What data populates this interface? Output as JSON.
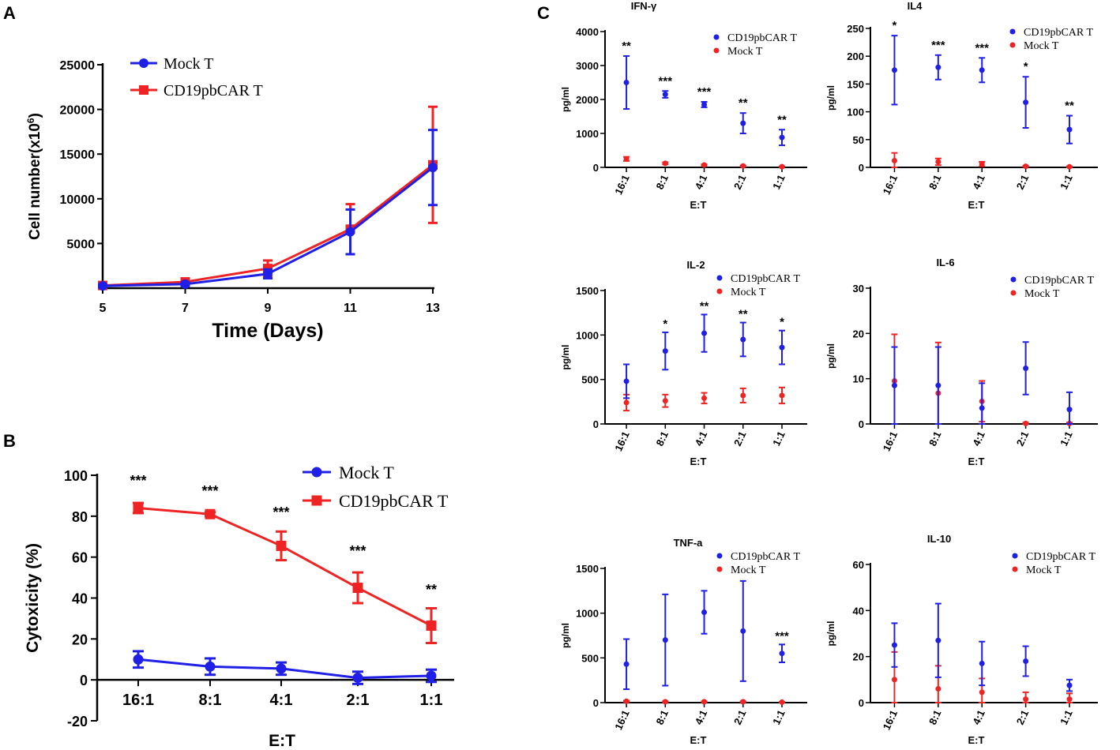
{
  "panel_letters": [
    "A",
    "B",
    "C"
  ],
  "colors": {
    "blue": "#1f1fe6",
    "red": "#ee2424",
    "axis": "#000000"
  },
  "chart_data": [
    {
      "id": "A",
      "type": "line",
      "title": "",
      "xlabel": "Time (Days)",
      "ylabel": "Cell number(x10",
      "ylabel_sup": "6",
      "ylabel_close": ")",
      "x": [
        5,
        7,
        9,
        11,
        13
      ],
      "xlim": [
        5,
        13
      ],
      "ylim": [
        0,
        25000
      ],
      "yticks": [
        5000,
        10000,
        15000,
        20000,
        25000
      ],
      "legend": "top-left",
      "series": [
        {
          "name": "Mock T",
          "color": "#1f1fe6",
          "marker": "circle",
          "values": [
            250,
            450,
            1600,
            6300,
            13500
          ],
          "err": [
            120,
            200,
            500,
            2500,
            4200
          ]
        },
        {
          "name": "CD19pbCAR T",
          "color": "#ee2424",
          "marker": "square",
          "values": [
            300,
            700,
            2200,
            6600,
            13800
          ],
          "err": [
            150,
            250,
            900,
            2800,
            6500
          ]
        }
      ]
    },
    {
      "id": "B",
      "type": "line",
      "title": "",
      "xlabel": "E:T",
      "ylabel": "Cytoxicity (%)",
      "categories": [
        "16:1",
        "8:1",
        "4:1",
        "2:1",
        "1:1"
      ],
      "ylim": [
        -20,
        100
      ],
      "yticks": [
        -20,
        0,
        20,
        40,
        60,
        80,
        100
      ],
      "legend": "top-right",
      "series": [
        {
          "name": "Mock T",
          "color": "#1f1fe6",
          "marker": "circle",
          "values": [
            10,
            6.5,
            5.5,
            1,
            2
          ],
          "err": [
            4,
            4,
            3,
            3,
            3
          ]
        },
        {
          "name": "CD19pbCAR T",
          "color": "#ee2424",
          "marker": "square",
          "values": [
            84,
            81,
            65.5,
            45,
            26.5
          ],
          "err": [
            2.5,
            1,
            7,
            7.5,
            8.5
          ]
        }
      ],
      "significance": [
        "***",
        "***",
        "***",
        "***",
        "**"
      ]
    }
  ],
  "cytokine_panels": [
    {
      "title": "IFN-γ",
      "ylabel": "pg/ml",
      "xlabel": "E:T",
      "categories": [
        "16:1",
        "8:1",
        "4:1",
        "2:1",
        "1:1"
      ],
      "ylim": [
        0,
        4000
      ],
      "yticks": [
        0,
        1000,
        2000,
        3000,
        4000
      ],
      "legend_names": [
        "CD19pbCAR T",
        "Mock T"
      ],
      "series": [
        {
          "name": "CD19pbCAR T",
          "values": [
            2500,
            2150,
            1850,
            1300,
            880
          ],
          "err": [
            780,
            100,
            80,
            300,
            230
          ]
        },
        {
          "name": "Mock T",
          "values": [
            250,
            120,
            70,
            40,
            20
          ],
          "err": [
            60,
            30,
            20,
            15,
            10
          ]
        }
      ],
      "significance": [
        "**",
        "***",
        "***",
        "**",
        "**"
      ]
    },
    {
      "title": "IL4",
      "ylabel": "pg/ml",
      "xlabel": "E:T",
      "categories": [
        "16:1",
        "8:1",
        "4:1",
        "2:1",
        "1:1"
      ],
      "ylim": [
        0,
        250
      ],
      "yticks": [
        0,
        50,
        100,
        150,
        200,
        250
      ],
      "legend_names": [
        "CD19pbCAR T",
        "Mock T"
      ],
      "series": [
        {
          "name": "CD19pbCAR T",
          "values": [
            175,
            180,
            175,
            117,
            68
          ],
          "err": [
            62,
            22,
            22,
            46,
            25
          ]
        },
        {
          "name": "Mock T",
          "values": [
            12,
            10,
            6,
            2,
            1
          ],
          "err": [
            14,
            6,
            4,
            1,
            1
          ]
        }
      ],
      "significance": [
        "*",
        "***",
        "***",
        "*",
        "**"
      ]
    },
    {
      "title": "IL-2",
      "ylabel": "pg/ml",
      "xlabel": "E:T",
      "categories": [
        "16:1",
        "8:1",
        "4:1",
        "2:1",
        "1:1"
      ],
      "ylim": [
        0,
        1500
      ],
      "yticks": [
        0,
        500,
        1000,
        1500
      ],
      "legend_names": [
        "CD19pbCAR T",
        "Mock T"
      ],
      "series": [
        {
          "name": "CD19pbCAR T",
          "values": [
            480,
            820,
            1020,
            950,
            860
          ],
          "err": [
            190,
            210,
            210,
            190,
            190
          ]
        },
        {
          "name": "Mock T",
          "values": [
            240,
            260,
            290,
            320,
            320
          ],
          "err": [
            90,
            70,
            60,
            80,
            90
          ]
        }
      ],
      "significance": [
        "",
        "*",
        "**",
        "**",
        "*"
      ]
    },
    {
      "title": "IL-6",
      "ylabel": "pg/ml",
      "xlabel": "E:T",
      "categories": [
        "16:1",
        "8:1",
        "4:1",
        "2:1",
        "1:1"
      ],
      "ylim": [
        0,
        30
      ],
      "yticks": [
        0,
        10,
        20,
        30
      ],
      "legend_names": [
        "CD19pbCAR T",
        "Mock T"
      ],
      "series": [
        {
          "name": "CD19pbCAR T",
          "values": [
            8.5,
            8.5,
            3.5,
            12.3,
            3.2
          ],
          "err": [
            8.5,
            8.5,
            5.5,
            5.8,
            3.8
          ]
        },
        {
          "name": "Mock T",
          "values": [
            9.5,
            6.8,
            5,
            0.1,
            0.1
          ],
          "err": [
            10.3,
            11.2,
            4.5,
            0.2,
            0.2
          ]
        }
      ],
      "significance": [
        "",
        "",
        "",
        "",
        ""
      ]
    },
    {
      "title": "TNF-a",
      "ylabel": "pg/ml",
      "xlabel": "E:T",
      "categories": [
        "16:1",
        "8:1",
        "4:1",
        "2:1",
        "1:1"
      ],
      "ylim": [
        0,
        1500
      ],
      "yticks": [
        0,
        500,
        1000,
        1500
      ],
      "legend_names": [
        "CD19pbCAR T",
        "Mock T"
      ],
      "series": [
        {
          "name": "CD19pbCAR T",
          "values": [
            430,
            700,
            1010,
            800,
            550
          ],
          "err": [
            280,
            510,
            240,
            560,
            100
          ]
        },
        {
          "name": "Mock T",
          "values": [
            15,
            10,
            10,
            10,
            5
          ],
          "err": [
            8,
            5,
            5,
            5,
            3
          ]
        }
      ],
      "significance": [
        "",
        "",
        "",
        "",
        "***"
      ]
    },
    {
      "title": "IL-10",
      "ylabel": "pg/ml",
      "xlabel": "E:T",
      "categories": [
        "16:1",
        "8:1",
        "4:1",
        "2:1",
        "1:1"
      ],
      "ylim": [
        0,
        60
      ],
      "yticks": [
        0,
        20,
        40,
        60
      ],
      "legend_names": [
        "CD19pbCAR T",
        "Mock T"
      ],
      "series": [
        {
          "name": "CD19pbCAR T",
          "values": [
            25,
            27,
            17,
            18,
            7.5
          ],
          "err": [
            9.5,
            16,
            9.5,
            6.5,
            2.5
          ]
        },
        {
          "name": "Mock T",
          "values": [
            10,
            6,
            4.5,
            1.5,
            1.5
          ],
          "err": [
            12,
            10,
            6,
            3,
            2.5
          ]
        }
      ],
      "significance": [
        "",
        "",
        "",
        "",
        ""
      ]
    }
  ]
}
